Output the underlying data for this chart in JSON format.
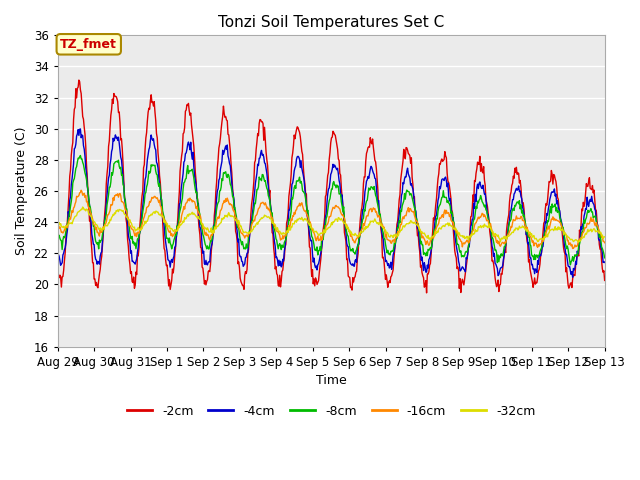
{
  "title": "Tonzi Soil Temperatures Set C",
  "xlabel": "Time",
  "ylabel": "Soil Temperature (C)",
  "ylim": [
    16,
    36
  ],
  "yticks": [
    16,
    18,
    20,
    22,
    24,
    26,
    28,
    30,
    32,
    34,
    36
  ],
  "series_labels": [
    "-2cm",
    "-4cm",
    "-8cm",
    "-16cm",
    "-32cm"
  ],
  "series_colors": [
    "#dd0000",
    "#0000cc",
    "#00bb00",
    "#ff8800",
    "#dddd00"
  ],
  "fig_bg_color": "#ffffff",
  "plot_bg_color": "#ebebeb",
  "grid_color": "#ffffff",
  "annotation_text": "TZ_fmet",
  "annotation_bg": "#ffffcc",
  "annotation_border": "#aa8800",
  "annotation_text_color": "#cc0000",
  "tick_labels": [
    "Aug 29",
    "Aug 30",
    "Aug 31",
    "Sep 1",
    "Sep 2",
    "Sep 3",
    "Sep 4",
    "Sep 5",
    "Sep 6",
    "Sep 7",
    "Sep 8",
    "Sep 9",
    "Sep 10",
    "Sep 11",
    "Sep 12",
    "Sep 13"
  ],
  "num_days": 15,
  "points_per_day": 48
}
